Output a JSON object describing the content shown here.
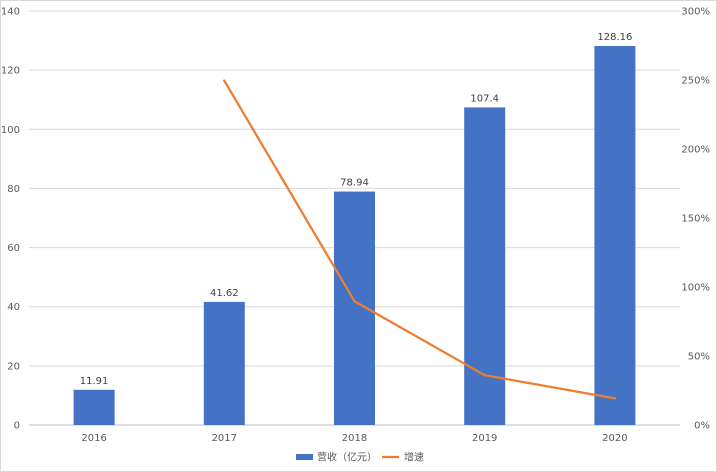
{
  "chart_data": {
    "type": "bar",
    "categories": [
      "2016",
      "2017",
      "2018",
      "2019",
      "2020"
    ],
    "series": [
      {
        "name": "营收（亿元）",
        "type": "bar",
        "axis": "left",
        "color": "#4472C4",
        "values": [
          11.91,
          41.62,
          78.94,
          107.4,
          128.16
        ],
        "labels": [
          "11.91",
          "41.62",
          "78.94",
          "107.4",
          "128.16"
        ]
      },
      {
        "name": "增速",
        "type": "line",
        "axis": "right",
        "color": "#ED7D31",
        "values": [
          null,
          249.5,
          89.7,
          36.1,
          19.3
        ]
      }
    ],
    "y_left": {
      "min": 0,
      "max": 140,
      "ticks": [
        "0",
        "20",
        "40",
        "60",
        "80",
        "100",
        "120",
        "140"
      ]
    },
    "y_right": {
      "min": 0,
      "max": 300,
      "ticks": [
        "0%",
        "50%",
        "100%",
        "150%",
        "200%",
        "250%",
        "300%"
      ]
    },
    "grid": true,
    "legend": "bottom-center"
  }
}
